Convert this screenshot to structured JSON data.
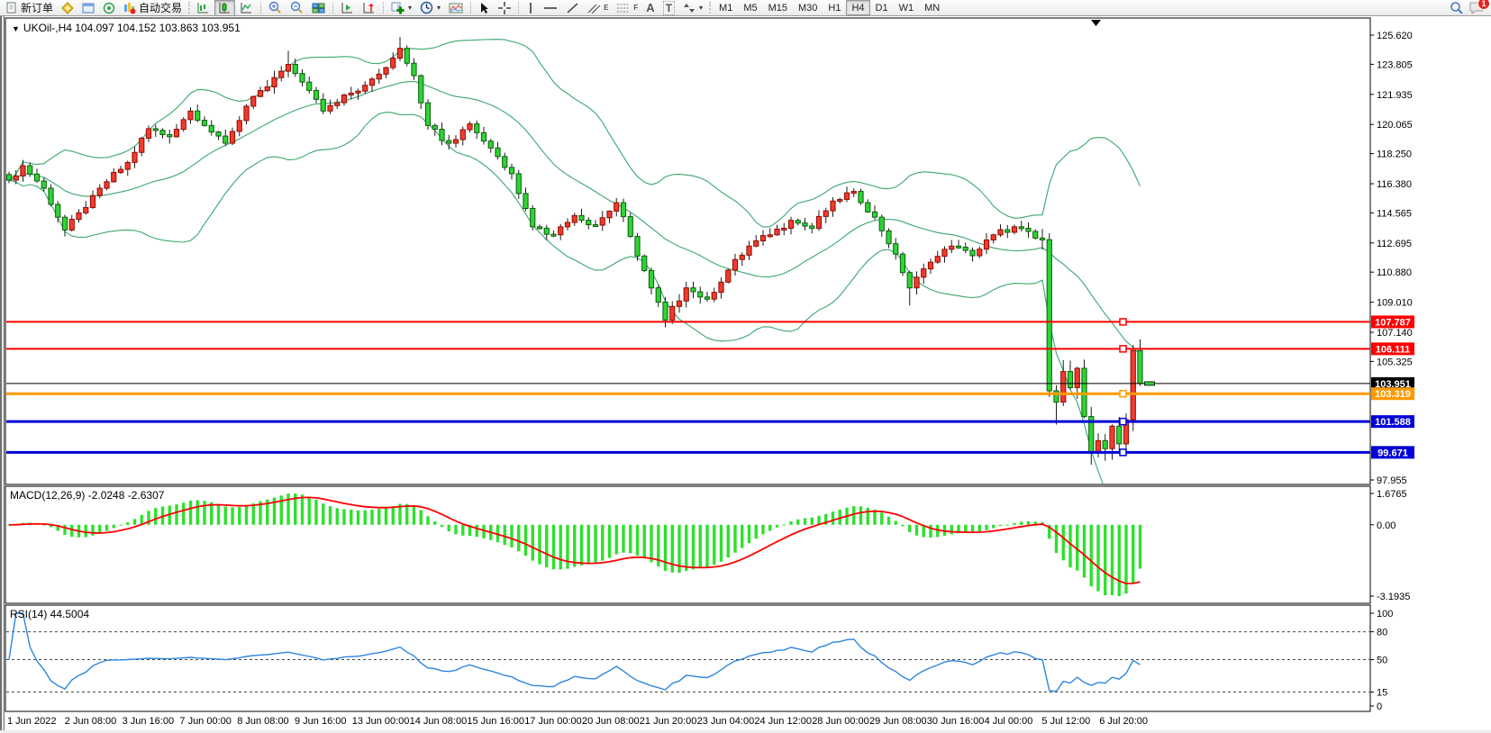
{
  "toolbar": {
    "new_order": "新订单",
    "autotrading": "自动交易",
    "timeframes": [
      "M1",
      "M5",
      "M15",
      "M30",
      "H1",
      "H4",
      "D1",
      "W1",
      "MN"
    ],
    "active_timeframe": "H4",
    "tool_letters": {
      "channel": "E",
      "fibonacci": "F",
      "text": "A",
      "label": "T"
    },
    "notification_count": "1"
  },
  "colors": {
    "candle_up": "#f23b2e",
    "candle_up_border": "#8e0b00",
    "candle_down": "#2fd435",
    "candle_down_border": "#0b5d0b",
    "wick": "#1c1c1c",
    "bollinger": "#3aa76d",
    "macd_hist": "#2ee02e",
    "macd_signal": "#ff0000",
    "rsi_line": "#2e86e0",
    "line_red": "#ff0000",
    "line_orange": "#ff9900",
    "line_blue": "#0202d6",
    "line_black": "#000000"
  },
  "chart_data": {
    "type": "candlestick",
    "symbol": "UKOil-",
    "timeframe": "H4",
    "title_line": "UKOil-,H4  104.097 104.152 103.863 103.951",
    "ohlc_display": {
      "open": "104.097",
      "high": "104.152",
      "low": "103.863",
      "close": "103.951"
    },
    "current_price": 103.951,
    "y_axis": {
      "scale_top_value": 125.62,
      "scale_bottom_value": 97.955,
      "ticks": [
        "125.620",
        "123.805",
        "121.935",
        "120.065",
        "118.250",
        "116.380",
        "114.565",
        "112.695",
        "110.880",
        "109.010",
        "107.140",
        "105.325",
        "97.955"
      ]
    },
    "x_axis": {
      "labels": [
        "1 Jun 2022",
        "2 Jun 08:00",
        "3 Jun 16:00",
        "7 Jun 00:00",
        "8 Jun 08:00",
        "9 Jun 16:00",
        "13 Jun 00:00",
        "14 Jun 08:00",
        "15 Jun 16:00",
        "17 Jun 00:00",
        "20 Jun 08:00",
        "21 Jun 20:00",
        "23 Jun 04:00",
        "24 Jun 12:00",
        "28 Jun 00:00",
        "29 Jun 08:00",
        "30 Jun 16:00",
        "4 Jul 00:00",
        "5 Jul 12:00",
        "6 Jul 20:00"
      ]
    },
    "price_lines": [
      {
        "value": 107.787,
        "label": "107.787",
        "color": "#ff0000",
        "width": 2,
        "marker": true
      },
      {
        "value": 106.111,
        "label": "106.111",
        "color": "#ff0000",
        "width": 2,
        "marker": true
      },
      {
        "value": 103.951,
        "label": "103.951",
        "color": "#000000",
        "width": 1,
        "marker": false,
        "is_current": true
      },
      {
        "value": 103.319,
        "label": "103.319",
        "color": "#ff9900",
        "width": 3,
        "marker": true
      },
      {
        "value": 101.588,
        "label": "101.588",
        "color": "#0202d6",
        "width": 3,
        "marker": true
      },
      {
        "value": 99.671,
        "label": "99.671",
        "color": "#0202d6",
        "width": 3,
        "marker": true
      }
    ],
    "bars": {
      "count": 163,
      "close_anchors": [
        [
          0,
          116.6
        ],
        [
          2,
          117.5
        ],
        [
          5,
          116.1
        ],
        [
          8,
          113.5
        ],
        [
          11,
          114.9
        ],
        [
          14,
          116.5
        ],
        [
          17,
          117.7
        ],
        [
          20,
          119.8
        ],
        [
          23,
          119.3
        ],
        [
          26,
          120.9
        ],
        [
          29,
          119.6
        ],
        [
          31,
          118.9
        ],
        [
          34,
          121.2
        ],
        [
          37,
          122.4
        ],
        [
          40,
          123.8
        ],
        [
          42,
          122.7
        ],
        [
          45,
          120.9
        ],
        [
          48,
          121.9
        ],
        [
          51,
          122.5
        ],
        [
          54,
          123.6
        ],
        [
          56,
          124.8
        ],
        [
          58,
          123.1
        ],
        [
          60,
          120.0
        ],
        [
          63,
          118.9
        ],
        [
          66,
          120.1
        ],
        [
          69,
          118.6
        ],
        [
          72,
          117.0
        ],
        [
          75,
          113.7
        ],
        [
          78,
          113.2
        ],
        [
          81,
          114.4
        ],
        [
          84,
          113.8
        ],
        [
          87,
          115.2
        ],
        [
          89,
          113.1
        ],
        [
          92,
          109.9
        ],
        [
          94,
          107.9
        ],
        [
          97,
          109.9
        ],
        [
          100,
          109.2
        ],
        [
          103,
          111.0
        ],
        [
          106,
          112.5
        ],
        [
          109,
          113.2
        ],
        [
          112,
          114.1
        ],
        [
          115,
          113.6
        ],
        [
          118,
          115.3
        ],
        [
          121,
          115.9
        ],
        [
          124,
          114.3
        ],
        [
          127,
          112.0
        ],
        [
          129,
          109.9
        ],
        [
          132,
          111.5
        ],
        [
          135,
          112.5
        ],
        [
          138,
          111.9
        ],
        [
          141,
          113.2
        ],
        [
          144,
          113.7
        ],
        [
          147,
          113.0
        ],
        [
          148,
          112.9
        ],
        [
          149,
          103.5
        ],
        [
          150,
          102.8
        ],
        [
          151,
          104.7
        ],
        [
          152,
          103.7
        ],
        [
          153,
          104.9
        ],
        [
          154,
          101.9
        ],
        [
          155,
          99.7
        ],
        [
          156,
          100.4
        ],
        [
          157,
          99.9
        ],
        [
          158,
          101.3
        ],
        [
          159,
          100.2
        ],
        [
          160,
          101.7
        ],
        [
          161,
          106.0
        ],
        [
          162,
          103.951
        ]
      ],
      "high_overrides": {
        "40": 124.65,
        "56": 125.5,
        "161": 106.35
      },
      "low_overrides": {
        "8": 113.1,
        "94": 107.45,
        "129": 108.8,
        "150": 101.4,
        "155": 98.9,
        "157": 99.15
      }
    },
    "indicators": {
      "bollinger": {
        "period": 20,
        "deviation": 2
      },
      "macd": {
        "display": "MACD(12,26,9) -2.0248 -2.6307",
        "period_fast": 12,
        "period_slow": 26,
        "period_signal": 9,
        "main": -2.0248,
        "signal": -2.6307,
        "axis": [
          "1.6765",
          "0.00",
          "-3.1935"
        ]
      },
      "rsi": {
        "display": "RSI(14) 44.5004",
        "period": 14,
        "value": 44.5004,
        "axis": [
          "100",
          "80",
          "50",
          "15",
          "0"
        ],
        "axis_values": [
          100,
          80,
          50,
          15,
          0
        ],
        "levels": [
          80,
          50,
          15
        ]
      }
    }
  }
}
